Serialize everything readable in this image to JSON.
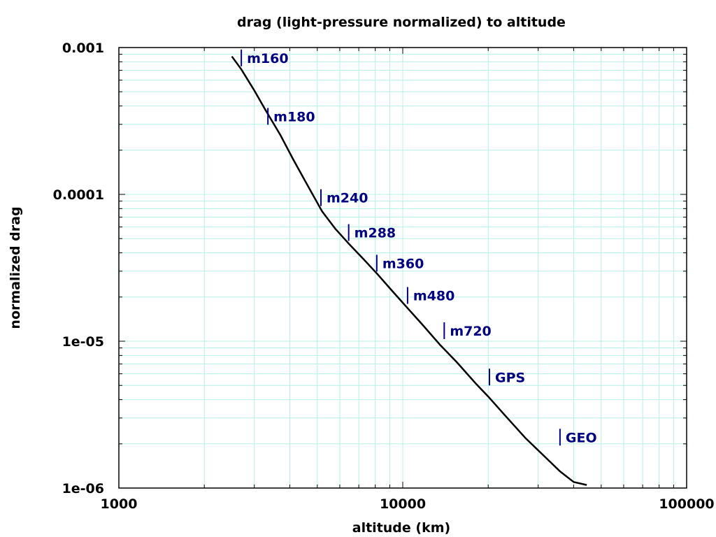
{
  "chart_data": {
    "type": "line",
    "title": "drag (light-pressure normalized) to altitude",
    "xlabel": "altitude (km)",
    "ylabel": "normalized drag",
    "xscale": "log",
    "yscale": "log",
    "xlim": [
      1000,
      100000
    ],
    "ylim": [
      1e-06,
      0.001
    ],
    "x_tick_labels": [
      "1000",
      "10000",
      "100000"
    ],
    "x_tick_values": [
      1000,
      10000,
      100000
    ],
    "y_tick_labels": [
      "0.001",
      "0.0001",
      "1e-05",
      "1e-06"
    ],
    "y_tick_values": [
      0.001,
      0.0001,
      1e-05,
      1e-06
    ],
    "grid": true,
    "legend": "none",
    "colors": {
      "line": "#000000",
      "grid": "#b8f0e6",
      "annotation": "#000080",
      "axes": "#000000",
      "background": "#ffffff"
    },
    "series": [
      {
        "x": [
          2500,
          2700,
          3000,
          3300,
          3700,
          4100,
          4600,
          5200,
          5800,
          6500,
          7300,
          8200,
          9200,
          10400,
          11800,
          13500,
          15500,
          18000,
          20000,
          23000,
          27000,
          31000,
          35800,
          40000,
          44500
        ],
        "y": [
          0.00087,
          0.00071,
          0.00051,
          0.00037,
          0.000255,
          0.000175,
          0.000117,
          7.65e-05,
          5.8e-05,
          4.55e-05,
          3.6e-05,
          2.82e-05,
          2.19e-05,
          1.68e-05,
          1.28e-05,
          9.5e-06,
          7.2e-06,
          5.2e-06,
          4.2e-06,
          3.1e-06,
          2.2e-06,
          1.7e-06,
          1.3e-06,
          1.1e-06,
          1.05e-06
        ]
      }
    ],
    "annotations": [
      {
        "label": "m160",
        "x": 2700,
        "y": 0.00085
      },
      {
        "label": "m180",
        "x": 3350,
        "y": 0.00034
      },
      {
        "label": "m240",
        "x": 5150,
        "y": 9.5e-05
      },
      {
        "label": "m288",
        "x": 6450,
        "y": 5.5e-05
      },
      {
        "label": "m360",
        "x": 8100,
        "y": 3.4e-05
      },
      {
        "label": "m480",
        "x": 10400,
        "y": 2.05e-05
      },
      {
        "label": "m720",
        "x": 14000,
        "y": 1.18e-05
      },
      {
        "label": "GPS",
        "x": 20200,
        "y": 5.7e-06
      },
      {
        "label": "GEO",
        "x": 35800,
        "y": 2.22e-06
      }
    ]
  }
}
